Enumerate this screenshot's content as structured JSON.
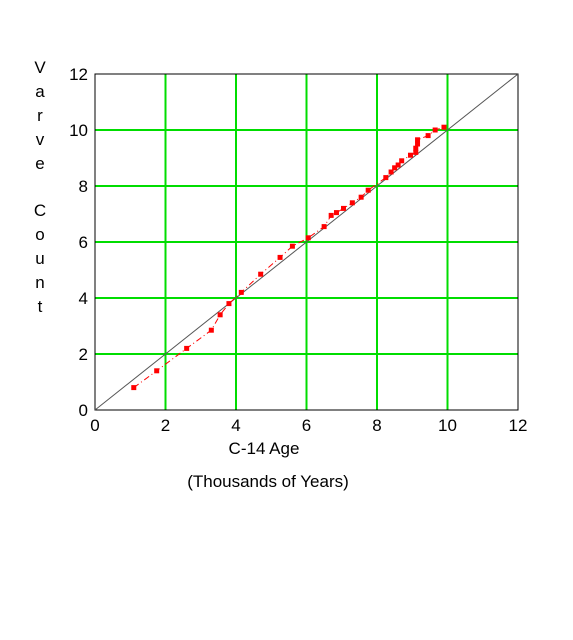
{
  "chart_data": {
    "type": "scatter",
    "title": "",
    "xlabel": "C-14 Age",
    "xlabel_note": "(Thousands of Years)",
    "ylabel": "Varve Count",
    "xlim": [
      0,
      12
    ],
    "ylim": [
      0,
      12
    ],
    "x_ticks": [
      "0",
      "2",
      "4",
      "6",
      "8",
      "10",
      "12"
    ],
    "y_ticks": [
      "0",
      "2",
      "4",
      "6",
      "8",
      "10",
      "12"
    ],
    "grid": true,
    "legend": "none",
    "colors": {
      "grid": "#00dd00",
      "points": "#ff0000",
      "trend": "#ff0000",
      "reference_line": "#555555",
      "axes": "#000000"
    },
    "series": [
      {
        "points": [
          [
            1.1,
            0.8
          ],
          [
            1.75,
            1.4
          ],
          [
            2.6,
            2.2
          ],
          [
            3.3,
            2.85
          ],
          [
            3.55,
            3.4
          ],
          [
            3.8,
            3.8
          ],
          [
            4.15,
            4.2
          ],
          [
            4.7,
            4.85
          ],
          [
            5.25,
            5.45
          ],
          [
            5.6,
            5.85
          ],
          [
            6.05,
            6.15
          ],
          [
            6.5,
            6.55
          ],
          [
            6.7,
            6.95
          ],
          [
            6.85,
            7.05
          ],
          [
            7.05,
            7.2
          ],
          [
            7.3,
            7.4
          ],
          [
            7.55,
            7.6
          ],
          [
            7.75,
            7.85
          ],
          [
            8.25,
            8.3
          ],
          [
            8.4,
            8.5
          ],
          [
            8.5,
            8.65
          ],
          [
            8.6,
            8.75
          ],
          [
            8.7,
            8.9
          ],
          [
            8.95,
            9.1
          ],
          [
            9.1,
            9.2
          ],
          [
            9.1,
            9.35
          ],
          [
            9.15,
            9.5
          ],
          [
            9.15,
            9.65
          ],
          [
            9.45,
            9.8
          ],
          [
            9.65,
            10.0
          ],
          [
            9.9,
            10.1
          ]
        ]
      }
    ],
    "reference_line": {
      "from": [
        0,
        0
      ],
      "to": [
        12,
        12
      ]
    }
  }
}
